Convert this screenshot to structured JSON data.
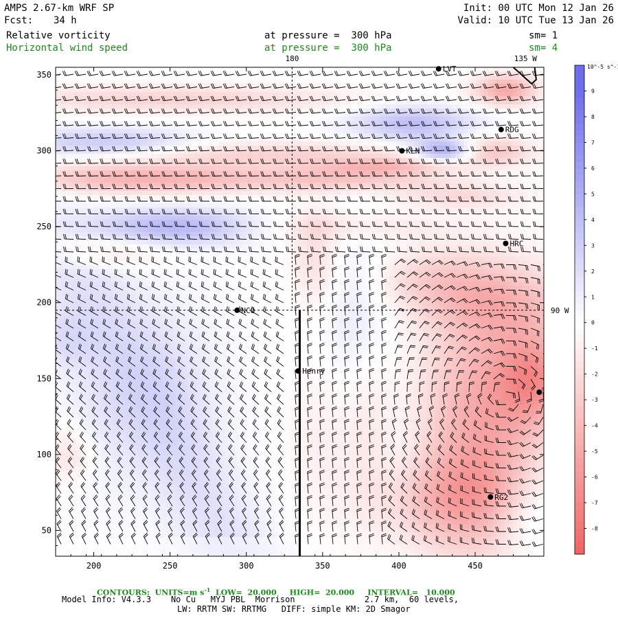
{
  "header": {
    "model_title": "AMPS 2.67-km WRF SP",
    "forecast_label": "Fcst:",
    "forecast_hours": "34 h",
    "init_text": "Init: 00 UTC Mon 12 Jan 26",
    "valid_text": "Valid: 10 UTC Tue 13 Jan 26",
    "field1_name": "Relative vorticity",
    "field1_level": "at pressure =  300 hPa",
    "field1_smooth": "sm= 1",
    "field2_name": "Horizontal wind speed",
    "field2_level": "at pressure =  300 hPa",
    "field2_smooth": "sm= 4"
  },
  "colors": {
    "positive": "#6f6fe8",
    "negative": "#f26a6a",
    "neutral": "#ffffff",
    "green_text": "#1a8a1a"
  },
  "chart_data": {
    "type": "heatmap",
    "xlim": [
      175,
      495
    ],
    "ylim": [
      33,
      355
    ],
    "x_ticks": [
      "200",
      "250",
      "300",
      "350",
      "400",
      "450"
    ],
    "y_ticks": [
      "50",
      "100",
      "150",
      "200",
      "250",
      "300",
      "350"
    ],
    "meridian_labels": [
      {
        "text": "180",
        "x": 330,
        "y": 355
      },
      {
        "text": "135 W",
        "x": 483,
        "y": 355
      },
      {
        "text": "90 W",
        "x": 495,
        "y": 195
      }
    ],
    "reference_lines": {
      "vertical_x": 330,
      "horizontal_y": 195
    },
    "cross_section": {
      "x": 335,
      "y_from": 33,
      "y_to": 195
    },
    "stations": [
      {
        "name": "NCO",
        "x": 294,
        "y": 195
      },
      {
        "name": "Henry",
        "x": 334,
        "y": 155
      },
      {
        "name": "KLN",
        "x": 402,
        "y": 300
      },
      {
        "name": "RDG",
        "x": 467,
        "y": 314
      },
      {
        "name": "HRC",
        "x": 470,
        "y": 239
      },
      {
        "name": "RG2",
        "x": 460,
        "y": 72
      },
      {
        "name": "LVT",
        "x": 426,
        "y": 354
      },
      {
        "name": "",
        "x": 492,
        "y": 141
      }
    ],
    "colorbar": {
      "unit_label": "10^-5 s^-1",
      "levels": [
        "9",
        "8",
        "7",
        "6",
        "5",
        "4",
        "3",
        "2",
        "1",
        "0",
        "-1",
        "-2",
        "-3",
        "-4",
        "-5",
        "-6",
        "-7",
        "-8"
      ],
      "range": [
        -9,
        10
      ]
    },
    "contour_info": {
      "prefix": "CONTOURS:",
      "units": "UNITS=m s",
      "units_exp": "-1",
      "low": "LOW=  20.000",
      "high": "HIGH=  20.000",
      "interval": "INTERVAL=   10.000"
    }
  },
  "footer": {
    "model_info": "Model Info: V4.3.3    No Cu   MYJ PBL  Morrison              2.7 km,  60 levels,",
    "physics_info": "LW: RRTM SW: RRTMG   DIFF: simple KM: 2D Smagor"
  }
}
